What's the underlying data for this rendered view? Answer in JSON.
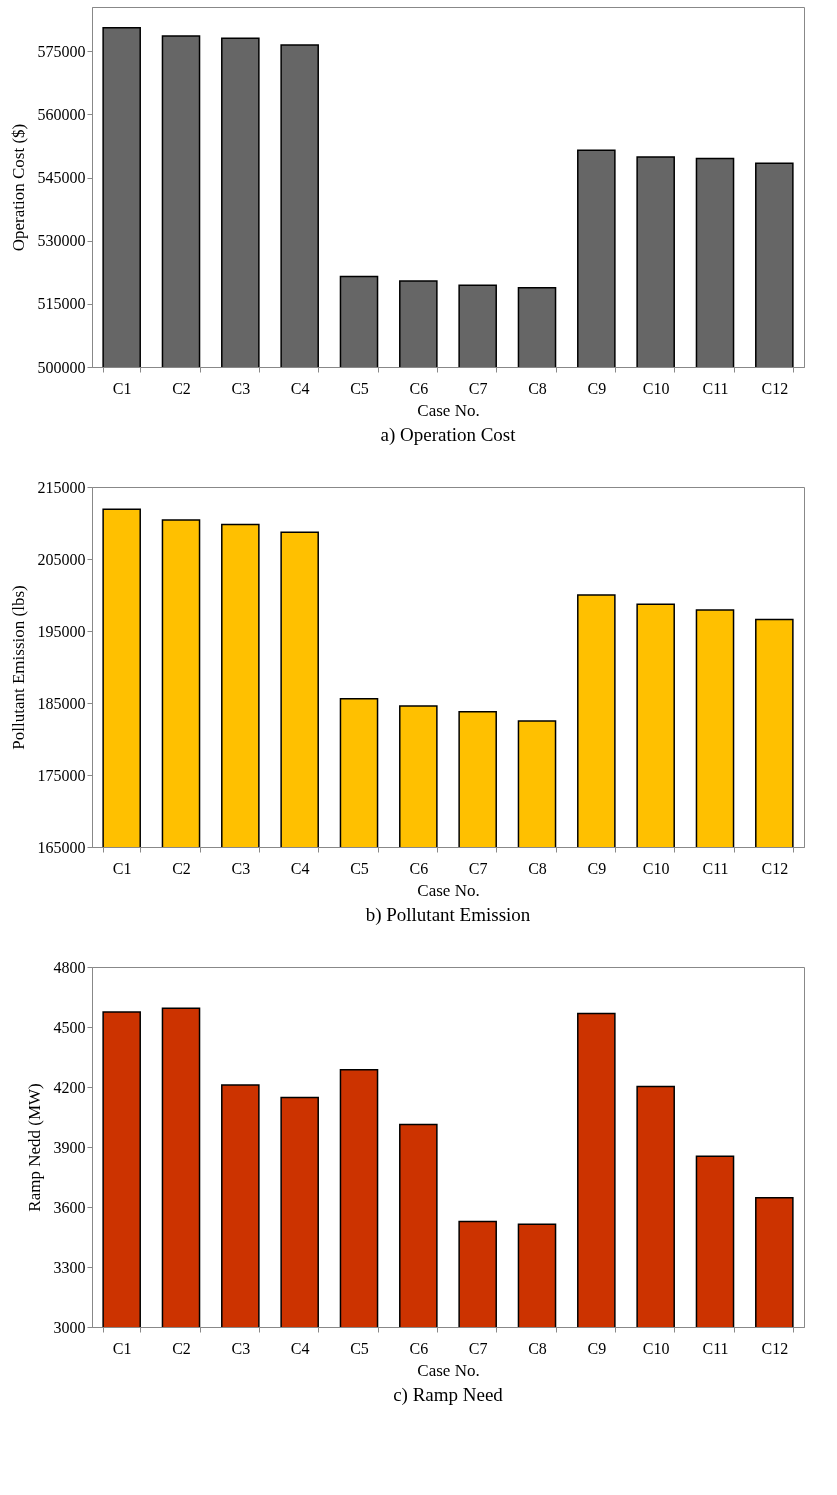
{
  "chart_data": [
    {
      "type": "bar",
      "title": "a) Operation Cost",
      "xlabel": "Case No.",
      "ylabel": "Operation Cost ($)",
      "categories": [
        "C1",
        "C2",
        "C3",
        "C4",
        "C5",
        "C6",
        "C7",
        "C8",
        "C9",
        "C10",
        "C11",
        "C12"
      ],
      "values": [
        580600,
        578600,
        578100,
        576500,
        521500,
        520400,
        519400,
        518800,
        551500,
        549900,
        549500,
        548400
      ],
      "color": "#666666",
      "ylim": [
        500000,
        585500
      ],
      "yticks": [
        500000,
        515000,
        530000,
        545000,
        560000,
        575000
      ]
    },
    {
      "type": "bar",
      "title": "b) Pollutant Emission",
      "xlabel": "Case No.",
      "ylabel": "Pollutant Emission (lbs)",
      "categories": [
        "C1",
        "C2",
        "C3",
        "C4",
        "C5",
        "C6",
        "C7",
        "C8",
        "C9",
        "C10",
        "C11",
        "C12"
      ],
      "values": [
        211900,
        210400,
        209800,
        208700,
        185600,
        184600,
        183800,
        182500,
        200000,
        198700,
        197900,
        196600
      ],
      "color": "#ffc000",
      "ylim": [
        165000,
        215000
      ],
      "yticks": [
        165000,
        175000,
        185000,
        195000,
        205000,
        215000
      ]
    },
    {
      "type": "bar",
      "title": "c) Ramp Need",
      "xlabel": "Case No.",
      "ylabel": "Ramp Nedd (MW)",
      "categories": [
        "C1",
        "C2",
        "C3",
        "C4",
        "C5",
        "C6",
        "C7",
        "C8",
        "C9",
        "C10",
        "C11",
        "C12"
      ],
      "values": [
        4575,
        4594,
        4210,
        4147,
        4286,
        4012,
        3527,
        3514,
        4568,
        4202,
        3854,
        3646
      ],
      "color": "#cc3300",
      "ylim": [
        3000,
        4800
      ],
      "yticks": [
        3000,
        3300,
        3600,
        3900,
        4200,
        4500,
        4800
      ]
    }
  ]
}
